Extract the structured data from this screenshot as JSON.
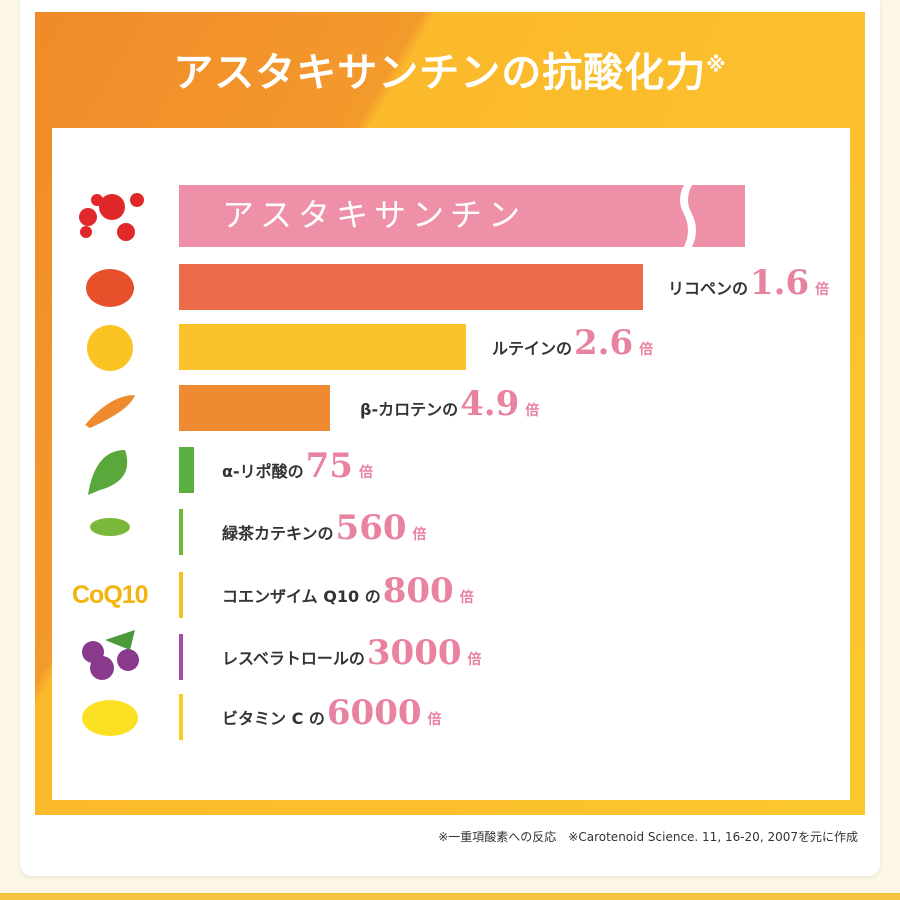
{
  "title": "アスタキサンチンの抗酸化力",
  "title_mark": "※",
  "top_bar": {
    "label": "アスタキサンチン"
  },
  "icon_label": "CoQ10",
  "items": [
    {
      "name": "リコペンの",
      "value": 1.6,
      "unit": "倍"
    },
    {
      "name": "ルテインの",
      "value": 2.6,
      "unit": "倍"
    },
    {
      "name": "β-カロテンの",
      "value": 4.9,
      "unit": "倍"
    },
    {
      "name": "α-リポ酸の",
      "value": 75,
      "unit": "倍"
    },
    {
      "name": "緑茶カテキンの",
      "value": 560,
      "unit": "倍"
    },
    {
      "name": "コエンザイム Q10 の",
      "value": 800,
      "unit": "倍"
    },
    {
      "name": "レスベラトロールの",
      "value": 3000,
      "unit": "倍"
    },
    {
      "name": "ビタミン C の",
      "value": 6000,
      "unit": "倍"
    }
  ],
  "footnote": "※一重項酸素への反応　※Carotenoid Science. 11, 16-20, 2007を元に作成"
}
